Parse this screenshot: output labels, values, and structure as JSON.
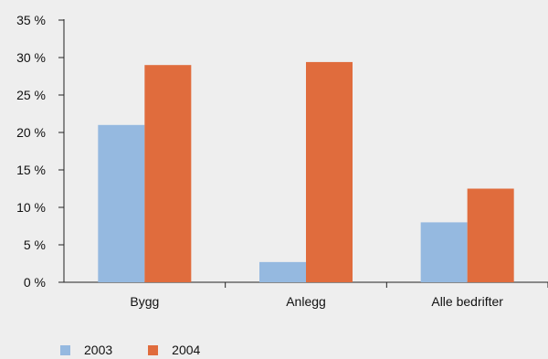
{
  "chart_data": {
    "type": "bar",
    "categories": [
      "Bygg",
      "Anlegg",
      "Alle bedrifter"
    ],
    "series": [
      {
        "name": "2003",
        "values": [
          21.0,
          2.7,
          8.0
        ],
        "color": "#95b9e0"
      },
      {
        "name": "2004",
        "values": [
          29.0,
          29.4,
          12.5
        ],
        "color": "#e06c3d"
      }
    ],
    "y_ticks": [
      "0 %",
      "5 %",
      "10 %",
      "15 %",
      "20 %",
      "25 %",
      "30 %",
      "35 %"
    ],
    "ylim": [
      0,
      35
    ],
    "y_step": 5,
    "grid": false,
    "legend_position": "bottom-left",
    "title": "",
    "xlabel": "",
    "ylabel": ""
  }
}
